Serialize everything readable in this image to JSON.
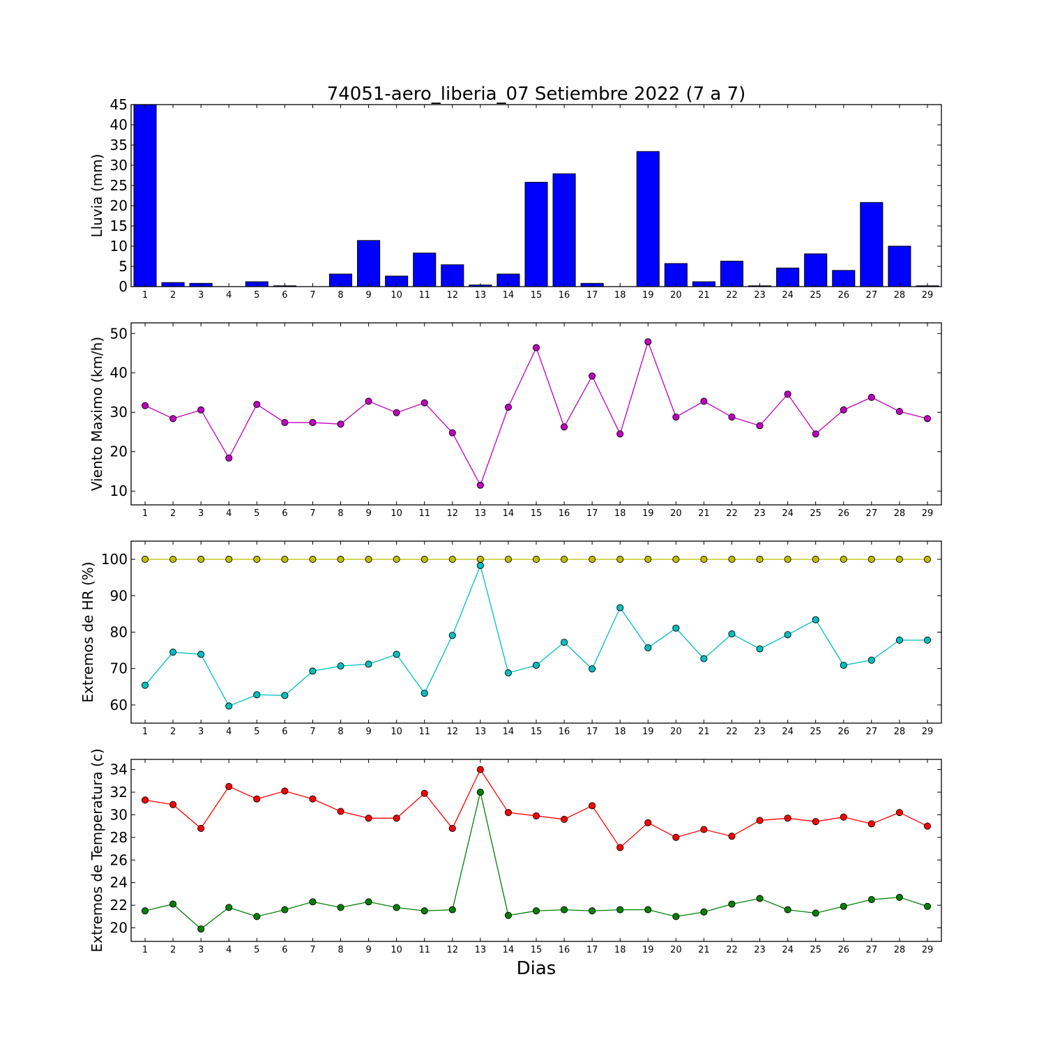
{
  "chart_data": [
    {
      "type": "bar",
      "title": "74051-aero_liberia_07 Setiembre 2022  (7 a 7)",
      "ylabel": "Lluvia (mm)",
      "ylim": [
        0,
        45
      ],
      "yticks": [
        0,
        5,
        10,
        15,
        20,
        25,
        30,
        35,
        40,
        45
      ],
      "categories": [
        "1",
        "2",
        "3",
        "4",
        "5",
        "6",
        "7",
        "8",
        "9",
        "10",
        "11",
        "12",
        "13",
        "14",
        "15",
        "16",
        "17",
        "18",
        "19",
        "20",
        "21",
        "22",
        "23",
        "24",
        "25",
        "26",
        "27",
        "28",
        "29"
      ],
      "series": [
        {
          "color": "#0000ff",
          "values": [
            45,
            1.0,
            0.8,
            0,
            1.2,
            0.2,
            0,
            3.1,
            11.4,
            2.6,
            8.3,
            5.4,
            0.4,
            3.1,
            25.8,
            27.9,
            0.8,
            0,
            33.4,
            5.7,
            1.2,
            6.3,
            0.2,
            4.6,
            8.1,
            4.0,
            20.8,
            10.0,
            0.2
          ]
        }
      ]
    },
    {
      "type": "line",
      "ylabel": "Viento Maximo (km/h)",
      "ylim": [
        6.5,
        52.7
      ],
      "yticks": [
        10,
        20,
        30,
        40,
        50
      ],
      "x": [
        1,
        2,
        3,
        4,
        5,
        6,
        7,
        8,
        9,
        10,
        11,
        12,
        13,
        14,
        15,
        16,
        17,
        18,
        19,
        20,
        21,
        22,
        23,
        24,
        25,
        26,
        27,
        28,
        29
      ],
      "series": [
        {
          "color": "#bf00bf",
          "values": [
            31.7,
            28.4,
            30.6,
            18.4,
            32.0,
            27.4,
            27.4,
            27.0,
            32.8,
            29.9,
            32.4,
            24.8,
            11.5,
            31.3,
            46.4,
            26.3,
            39.2,
            24.5,
            47.9,
            28.8,
            32.8,
            28.8,
            26.6,
            34.6,
            24.5,
            30.6,
            33.8,
            30.2,
            28.4
          ]
        }
      ]
    },
    {
      "type": "line",
      "ylabel": "Extremos de HR (%)",
      "ylim": [
        55,
        105
      ],
      "yticks": [
        60,
        70,
        80,
        90,
        100
      ],
      "x": [
        1,
        2,
        3,
        4,
        5,
        6,
        7,
        8,
        9,
        10,
        11,
        12,
        13,
        14,
        15,
        16,
        17,
        18,
        19,
        20,
        21,
        22,
        23,
        24,
        25,
        26,
        27,
        28,
        29
      ],
      "series": [
        {
          "color": "#bfbf00",
          "values": [
            100,
            100,
            100,
            100,
            100,
            100,
            100,
            100,
            100,
            100,
            100,
            100,
            100,
            100,
            100,
            100,
            100,
            100,
            100,
            100,
            100,
            100,
            100,
            100,
            100,
            100,
            100,
            100,
            100
          ]
        },
        {
          "color": "#00bfbf",
          "values": [
            65.4,
            74.5,
            73.9,
            59.7,
            62.8,
            62.6,
            69.3,
            70.7,
            71.2,
            73.9,
            63.2,
            79.1,
            98.3,
            68.8,
            70.9,
            77.2,
            69.9,
            86.7,
            75.7,
            81.1,
            72.7,
            79.5,
            75.4,
            79.3,
            83.4,
            70.9,
            72.3,
            77.8,
            77.8
          ]
        }
      ]
    },
    {
      "type": "line",
      "ylabel": "Extremos de Temperatura (c)",
      "xlabel": "Dias",
      "ylim": [
        18.8,
        34.9
      ],
      "yticks": [
        20,
        22,
        24,
        26,
        28,
        30,
        32,
        34
      ],
      "x": [
        1,
        2,
        3,
        4,
        5,
        6,
        7,
        8,
        9,
        10,
        11,
        12,
        13,
        14,
        15,
        16,
        17,
        18,
        19,
        20,
        21,
        22,
        23,
        24,
        25,
        26,
        27,
        28,
        29
      ],
      "series": [
        {
          "color": "#ff0000",
          "values": [
            31.3,
            30.9,
            28.8,
            32.5,
            31.4,
            32.1,
            31.4,
            30.3,
            29.7,
            29.7,
            31.9,
            28.8,
            34.0,
            30.2,
            29.9,
            29.6,
            30.8,
            27.1,
            29.3,
            28.0,
            28.7,
            28.1,
            29.5,
            29.7,
            29.4,
            29.8,
            29.2,
            30.2,
            29.0
          ]
        },
        {
          "color": "#008000",
          "values": [
            21.5,
            22.1,
            19.9,
            21.8,
            21.0,
            21.6,
            22.3,
            21.8,
            22.3,
            21.8,
            21.5,
            21.6,
            32.0,
            21.1,
            21.5,
            21.6,
            21.5,
            21.6,
            21.6,
            21.0,
            21.4,
            22.1,
            22.6,
            21.6,
            21.3,
            21.9,
            22.5,
            22.7,
            21.9
          ]
        }
      ]
    }
  ]
}
